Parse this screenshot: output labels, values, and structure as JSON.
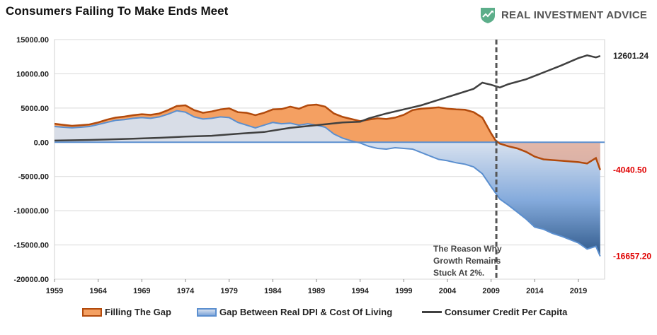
{
  "title": "Consumers Failing To Make Ends Meet",
  "logo": {
    "text": "REAL INVESTMENT ADVICE",
    "icon": "chart-shield-icon",
    "color": "#5cae8a"
  },
  "colors": {
    "filling_gap_fill": "#f4a062",
    "filling_gap_line": "#b24a0c",
    "gap_line": "#5b8fcf",
    "gap_fill_light": "#d6e0ee",
    "gap_fill_dark": "#204c80",
    "credit_line": "#404040",
    "red_label": "#e00000",
    "vline": "#555555"
  },
  "chart_data": {
    "type": "area",
    "ylim": [
      -20000,
      15000
    ],
    "yticks": [
      15000,
      10000,
      5000,
      0,
      -5000,
      -10000,
      -15000,
      -20000
    ],
    "ytick_labels": [
      "15000.00",
      "10000.00",
      "5000.00",
      "0.00",
      "-5000.00",
      "-10000.00",
      "-15000.00",
      "-20000.00"
    ],
    "xlim": [
      1959,
      2022
    ],
    "xticks": [
      1959,
      1964,
      1969,
      1974,
      1979,
      1984,
      1989,
      1994,
      1999,
      2004,
      2009,
      2014,
      2019
    ],
    "xtick_labels": [
      "1959",
      "1964",
      "1969",
      "1974",
      "1979",
      "1984",
      "1989",
      "1994",
      "1999",
      "2004",
      "2009",
      "2014",
      "2019"
    ],
    "grid": true,
    "legend_position": "bottom",
    "series": [
      {
        "name": "Filling The Gap",
        "kind": "area",
        "points": [
          [
            1959,
            2700
          ],
          [
            1960,
            2550
          ],
          [
            1961,
            2400
          ],
          [
            1962,
            2500
          ],
          [
            1963,
            2600
          ],
          [
            1964,
            2900
          ],
          [
            1965,
            3300
          ],
          [
            1966,
            3600
          ],
          [
            1967,
            3750
          ],
          [
            1968,
            3950
          ],
          [
            1969,
            4100
          ],
          [
            1970,
            4000
          ],
          [
            1971,
            4200
          ],
          [
            1972,
            4700
          ],
          [
            1973,
            5300
          ],
          [
            1974,
            5400
          ],
          [
            1975,
            4700
          ],
          [
            1976,
            4300
          ],
          [
            1977,
            4500
          ],
          [
            1978,
            4800
          ],
          [
            1979,
            4950
          ],
          [
            1980,
            4400
          ],
          [
            1981,
            4300
          ],
          [
            1982,
            3950
          ],
          [
            1983,
            4300
          ],
          [
            1984,
            4800
          ],
          [
            1985,
            4850
          ],
          [
            1986,
            5200
          ],
          [
            1987,
            4900
          ],
          [
            1988,
            5400
          ],
          [
            1989,
            5500
          ],
          [
            1990,
            5200
          ],
          [
            1991,
            4200
          ],
          [
            1992,
            3700
          ],
          [
            1993,
            3400
          ],
          [
            1994,
            3100
          ],
          [
            1995,
            3300
          ],
          [
            1996,
            3500
          ],
          [
            1997,
            3400
          ],
          [
            1998,
            3600
          ],
          [
            1999,
            4000
          ],
          [
            2000,
            4700
          ],
          [
            2001,
            4900
          ],
          [
            2002,
            5000
          ],
          [
            2003,
            5100
          ],
          [
            2004,
            4900
          ],
          [
            2005,
            4800
          ],
          [
            2006,
            4750
          ],
          [
            2007,
            4400
          ],
          [
            2008,
            3600
          ],
          [
            2009,
            1300
          ],
          [
            2009.5,
            300
          ],
          [
            2010,
            -200
          ],
          [
            2011,
            -600
          ],
          [
            2012,
            -900
          ],
          [
            2013,
            -1400
          ],
          [
            2014,
            -2100
          ],
          [
            2015,
            -2500
          ],
          [
            2016,
            -2600
          ],
          [
            2017,
            -2700
          ],
          [
            2018,
            -2800
          ],
          [
            2019,
            -2900
          ],
          [
            2020,
            -3100
          ],
          [
            2021,
            -2300
          ],
          [
            2021.5,
            -4040.5
          ]
        ]
      },
      {
        "name": "Gap Between Real DPI & Cost Of Living",
        "kind": "area",
        "points": [
          [
            1959,
            2300
          ],
          [
            1960,
            2200
          ],
          [
            1961,
            2100
          ],
          [
            1962,
            2200
          ],
          [
            1963,
            2300
          ],
          [
            1964,
            2600
          ],
          [
            1965,
            2900
          ],
          [
            1966,
            3200
          ],
          [
            1967,
            3300
          ],
          [
            1968,
            3500
          ],
          [
            1969,
            3600
          ],
          [
            1970,
            3500
          ],
          [
            1971,
            3700
          ],
          [
            1972,
            4100
          ],
          [
            1973,
            4600
          ],
          [
            1974,
            4400
          ],
          [
            1975,
            3700
          ],
          [
            1976,
            3400
          ],
          [
            1977,
            3500
          ],
          [
            1978,
            3700
          ],
          [
            1979,
            3600
          ],
          [
            1980,
            2900
          ],
          [
            1981,
            2500
          ],
          [
            1982,
            2100
          ],
          [
            1983,
            2500
          ],
          [
            1984,
            2900
          ],
          [
            1985,
            2700
          ],
          [
            1986,
            2800
          ],
          [
            1987,
            2500
          ],
          [
            1988,
            2700
          ],
          [
            1989,
            2500
          ],
          [
            1990,
            2200
          ],
          [
            1991,
            1200
          ],
          [
            1992,
            600
          ],
          [
            1993,
            200
          ],
          [
            1994,
            -100
          ],
          [
            1995,
            -600
          ],
          [
            1996,
            -900
          ],
          [
            1997,
            -1000
          ],
          [
            1998,
            -800
          ],
          [
            1999,
            -900
          ],
          [
            2000,
            -1000
          ],
          [
            2001,
            -1500
          ],
          [
            2002,
            -2000
          ],
          [
            2003,
            -2500
          ],
          [
            2004,
            -2700
          ],
          [
            2005,
            -3000
          ],
          [
            2006,
            -3200
          ],
          [
            2007,
            -3600
          ],
          [
            2008,
            -4600
          ],
          [
            2009,
            -6500
          ],
          [
            2010,
            -8300
          ],
          [
            2011,
            -9200
          ],
          [
            2012,
            -10200
          ],
          [
            2013,
            -11200
          ],
          [
            2014,
            -12400
          ],
          [
            2015,
            -12700
          ],
          [
            2016,
            -13300
          ],
          [
            2017,
            -13700
          ],
          [
            2018,
            -14200
          ],
          [
            2019,
            -14700
          ],
          [
            2020,
            -15600
          ],
          [
            2021,
            -15200
          ],
          [
            2021.5,
            -16657.2
          ]
        ]
      },
      {
        "name": "Consumer Credit Per Capita",
        "kind": "line",
        "points": [
          [
            1959,
            250
          ],
          [
            1962,
            310
          ],
          [
            1965,
            400
          ],
          [
            1968,
            520
          ],
          [
            1971,
            650
          ],
          [
            1974,
            820
          ],
          [
            1977,
            950
          ],
          [
            1980,
            1250
          ],
          [
            1983,
            1500
          ],
          [
            1986,
            2100
          ],
          [
            1989,
            2500
          ],
          [
            1992,
            2900
          ],
          [
            1994,
            3000
          ],
          [
            1995,
            3500
          ],
          [
            1997,
            4200
          ],
          [
            1999,
            4800
          ],
          [
            2001,
            5400
          ],
          [
            2003,
            6200
          ],
          [
            2005,
            7000
          ],
          [
            2007,
            7800
          ],
          [
            2008,
            8700
          ],
          [
            2009,
            8400
          ],
          [
            2010,
            8000
          ],
          [
            2011,
            8500
          ],
          [
            2013,
            9200
          ],
          [
            2015,
            10200
          ],
          [
            2017,
            11200
          ],
          [
            2019,
            12300
          ],
          [
            2020,
            12700
          ],
          [
            2021,
            12400
          ],
          [
            2021.5,
            12601.24
          ]
        ]
      }
    ],
    "end_labels": [
      "12601.24",
      "-4040.50",
      "-16657.20"
    ],
    "vline_x": 2009.6,
    "annotation": [
      "The Reason Why",
      "Growth Remains",
      "Stuck At 2%."
    ]
  }
}
